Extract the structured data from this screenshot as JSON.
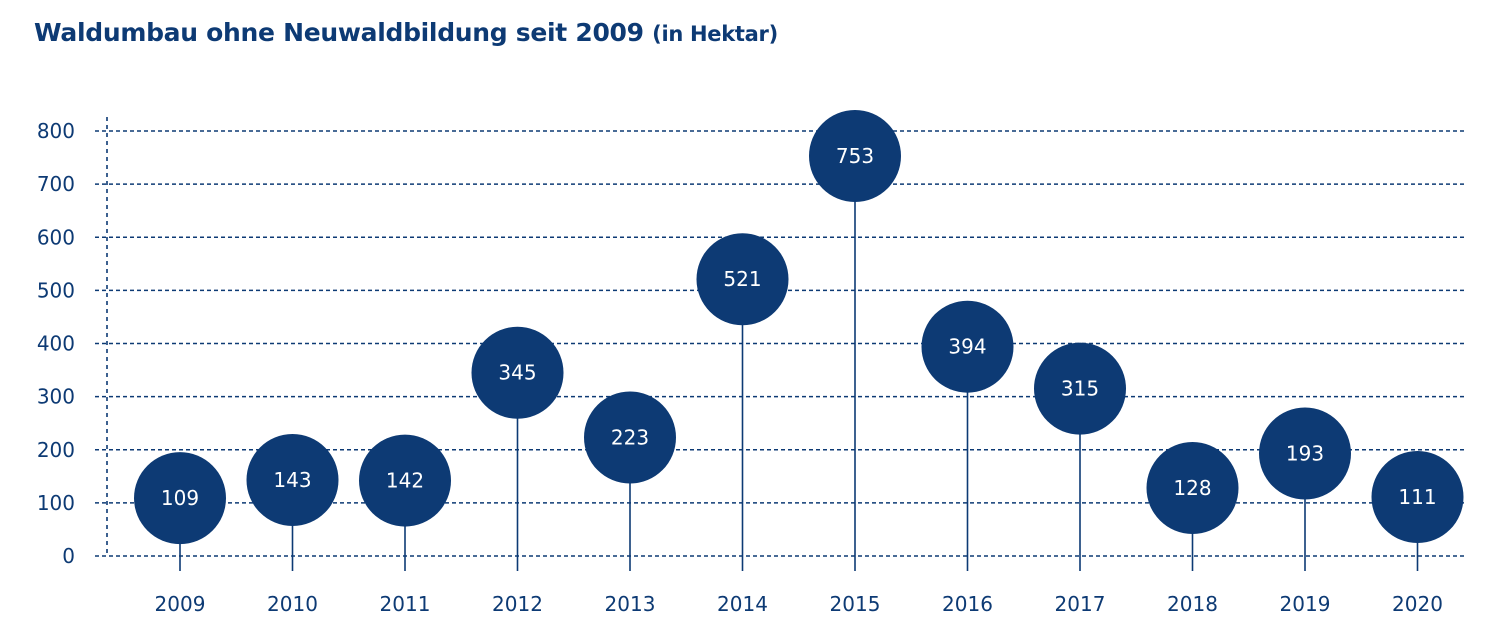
{
  "title": "Waldumbau ohne Neuwaldbildung seit 2009",
  "title_unit": "(in Hektar)",
  "colors": {
    "primary": "#0d3a74",
    "label_on_marker": "#ffffff"
  },
  "chart_data": {
    "type": "scatter",
    "style": "lollipop",
    "categories": [
      "2009",
      "2010",
      "2011",
      "2012",
      "2013",
      "2014",
      "2015",
      "2016",
      "2017",
      "2018",
      "2019",
      "2020"
    ],
    "values": [
      109,
      143,
      142,
      345,
      223,
      521,
      753,
      394,
      315,
      128,
      193,
      111
    ],
    "data_labels": [
      "109",
      "143",
      "142",
      "345",
      "223",
      "521",
      "753",
      "394",
      "315",
      "128",
      "193",
      "111"
    ],
    "y_ticks": [
      "0",
      "100",
      "200",
      "300",
      "400",
      "500",
      "600",
      "700",
      "800"
    ],
    "ylim": [
      0,
      800
    ],
    "grid": true,
    "legend": "none"
  }
}
